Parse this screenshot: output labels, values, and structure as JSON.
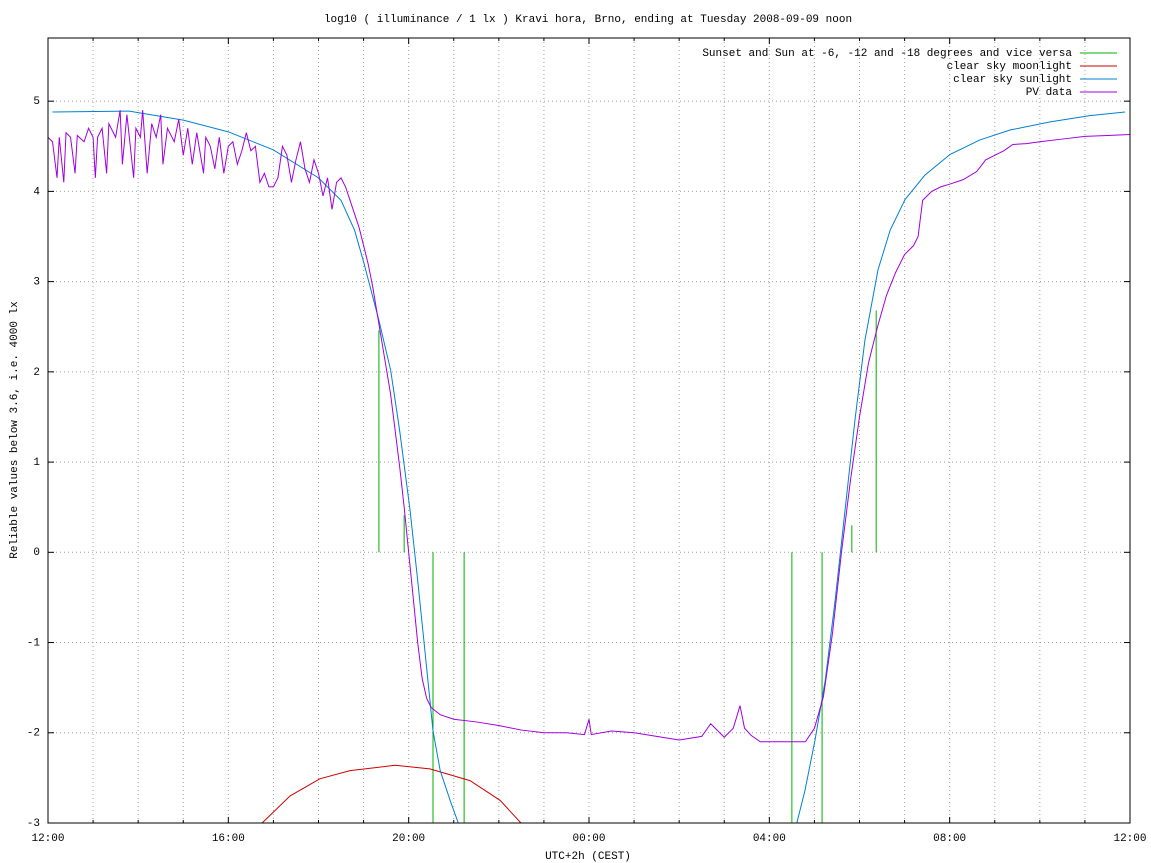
{
  "chart_data": {
    "type": "line",
    "title": "log10 ( illuminance / 1 lx ) Kravi hora, Brno, ending at Tuesday 2008-09-09 noon",
    "x_label": "UTC+2h (CEST)",
    "y_label": "Reliable values below 3.6, i.e. 4000 lx",
    "xlim": [
      0,
      24
    ],
    "ylim": [
      -3,
      5.7
    ],
    "xticks": [
      {
        "value": 0,
        "label": "12:00"
      },
      {
        "value": 4,
        "label": "16:00"
      },
      {
        "value": 8,
        "label": "20:00"
      },
      {
        "value": 12,
        "label": "00:00"
      },
      {
        "value": 16,
        "label": "04:00"
      },
      {
        "value": 20,
        "label": "08:00"
      },
      {
        "value": 24,
        "label": "12:00"
      }
    ],
    "x_minor_ticks": [
      1,
      2,
      3,
      5,
      6,
      7,
      9,
      10,
      11,
      13,
      14,
      15,
      17,
      18,
      19,
      21,
      22,
      23
    ],
    "yticks": [
      -3,
      -2,
      -1,
      0,
      1,
      2,
      3,
      4,
      5
    ],
    "grid": true,
    "legend": "top-right",
    "series": [
      {
        "name": "Sunset and Sun at -6, -12 and -18 degrees and vice versa",
        "color": "#00b000",
        "style": "impulses",
        "x": [
          7.34,
          7.9,
          8.54,
          9.23,
          16.5,
          17.17,
          17.83,
          18.37
        ],
        "values": [
          2.46,
          0.41,
          -3,
          -3,
          -3,
          -3,
          0.3,
          2.68
        ]
      },
      {
        "name": "clear sky moonlight",
        "color": "#d00000",
        "style": "lines",
        "x": [
          4.75,
          5.37,
          6.03,
          6.7,
          7.7,
          8.47,
          9.36,
          10.03,
          10.49
        ],
        "values": [
          -3,
          -2.7,
          -2.51,
          -2.42,
          -2.36,
          -2.4,
          -2.53,
          -2.75,
          -3
        ]
      },
      {
        "name": "clear sky sunlight",
        "color": "#0080d0",
        "style": "lines",
        "x": [
          0.1,
          1.8,
          3.0,
          4.0,
          5.0,
          6.0,
          6.5,
          6.8,
          7.0,
          7.34,
          7.6,
          7.8,
          8.03,
          8.2,
          8.36,
          8.54,
          8.7,
          8.92,
          9.1,
          12.0,
          16.61,
          16.79,
          17.01,
          17.24,
          17.46,
          17.68,
          17.9,
          18.12,
          18.41,
          18.68,
          19.01,
          19.45,
          20.01,
          20.67,
          21.34,
          22.23,
          23.11,
          23.89
        ],
        "values": [
          4.88,
          4.89,
          4.79,
          4.66,
          4.46,
          4.15,
          3.9,
          3.57,
          3.22,
          2.57,
          2.02,
          1.35,
          0.47,
          -0.31,
          -1.09,
          -1.98,
          -2.42,
          -2.75,
          -3,
          null,
          -3,
          -2.64,
          -2.09,
          -1.42,
          -0.53,
          0.47,
          1.47,
          2.35,
          3.13,
          3.57,
          3.91,
          4.18,
          4.41,
          4.57,
          4.68,
          4.77,
          4.84,
          4.88
        ]
      },
      {
        "name": "PV data",
        "color": "#a000e0",
        "style": "lines",
        "x": [
          0,
          0.1,
          0.2,
          0.25,
          0.35,
          0.4,
          0.5,
          0.6,
          0.65,
          0.8,
          0.9,
          1.0,
          1.05,
          1.1,
          1.2,
          1.3,
          1.35,
          1.5,
          1.6,
          1.65,
          1.75,
          1.9,
          1.95,
          2.05,
          2.1,
          2.2,
          2.3,
          2.4,
          2.5,
          2.55,
          2.65,
          2.8,
          2.9,
          3.0,
          3.1,
          3.2,
          3.3,
          3.45,
          3.5,
          3.6,
          3.7,
          3.8,
          3.9,
          4.0,
          4.1,
          4.2,
          4.3,
          4.4,
          4.5,
          4.6,
          4.7,
          4.8,
          4.9,
          5.0,
          5.1,
          5.2,
          5.3,
          5.4,
          5.5,
          5.6,
          5.7,
          5.8,
          5.9,
          6.0,
          6.1,
          6.2,
          6.3,
          6.4,
          6.5,
          6.6,
          6.7,
          6.8,
          6.9,
          7.0,
          7.1,
          7.2,
          7.3,
          7.4,
          7.5,
          7.6,
          7.7,
          7.8,
          7.9,
          8.0,
          8.1,
          8.2,
          8.3,
          8.4,
          8.5,
          8.7,
          9.0,
          9.5,
          10.0,
          10.5,
          11.0,
          11.5,
          11.9,
          12.0,
          12.05,
          12.5,
          13.0,
          13.5,
          14.0,
          14.5,
          14.7,
          14.9,
          15.0,
          15.2,
          15.35,
          15.45,
          15.6,
          15.8,
          16.0,
          16.5,
          16.8,
          17.0,
          17.2,
          17.4,
          17.6,
          17.8,
          18.0,
          18.2,
          18.4,
          18.6,
          18.8,
          19.0,
          19.2,
          19.3,
          19.4,
          19.6,
          19.8,
          20.0,
          20.3,
          20.6,
          20.8,
          21.0,
          21.2,
          21.4,
          21.7,
          22.0,
          22.5,
          23.0,
          23.5,
          24.0
        ],
        "values": [
          4.6,
          4.55,
          4.15,
          4.6,
          4.1,
          4.65,
          4.6,
          4.2,
          4.62,
          4.55,
          4.7,
          4.6,
          4.15,
          4.6,
          4.7,
          4.2,
          4.75,
          4.6,
          4.9,
          4.3,
          4.85,
          4.15,
          4.7,
          4.6,
          4.9,
          4.2,
          4.75,
          4.6,
          4.85,
          4.3,
          4.7,
          4.55,
          4.8,
          4.4,
          4.7,
          4.3,
          4.65,
          4.2,
          4.6,
          4.5,
          4.25,
          4.6,
          4.2,
          4.5,
          4.55,
          4.3,
          4.45,
          4.65,
          4.45,
          4.5,
          4.1,
          4.2,
          4.05,
          4.05,
          4.15,
          4.5,
          4.4,
          4.1,
          4.35,
          4.55,
          4.25,
          4.1,
          4.35,
          4.2,
          3.95,
          4.15,
          3.8,
          4.1,
          4.15,
          4.05,
          3.9,
          3.75,
          3.6,
          3.4,
          3.2,
          2.95,
          2.65,
          2.35,
          2.05,
          1.75,
          1.35,
          0.95,
          0.5,
          0,
          -0.5,
          -1.0,
          -1.4,
          -1.62,
          -1.72,
          -1.8,
          -1.85,
          -1.88,
          -1.92,
          -1.97,
          -2.0,
          -2.0,
          -2.02,
          -1.85,
          -2.02,
          -1.98,
          -2.0,
          -2.04,
          -2.08,
          -2.04,
          -1.9,
          -2.0,
          -2.05,
          -1.95,
          -1.7,
          -1.95,
          -2.03,
          -2.1,
          -2.1,
          -2.1,
          -2.1,
          -1.95,
          -1.6,
          -0.9,
          0,
          0.8,
          1.5,
          2.1,
          2.5,
          2.85,
          3.1,
          3.3,
          3.4,
          3.5,
          3.9,
          4.0,
          4.05,
          4.08,
          4.13,
          4.22,
          4.35,
          4.4,
          4.45,
          4.52,
          4.53,
          4.55,
          4.58,
          4.61,
          4.62,
          4.63
        ]
      }
    ]
  }
}
